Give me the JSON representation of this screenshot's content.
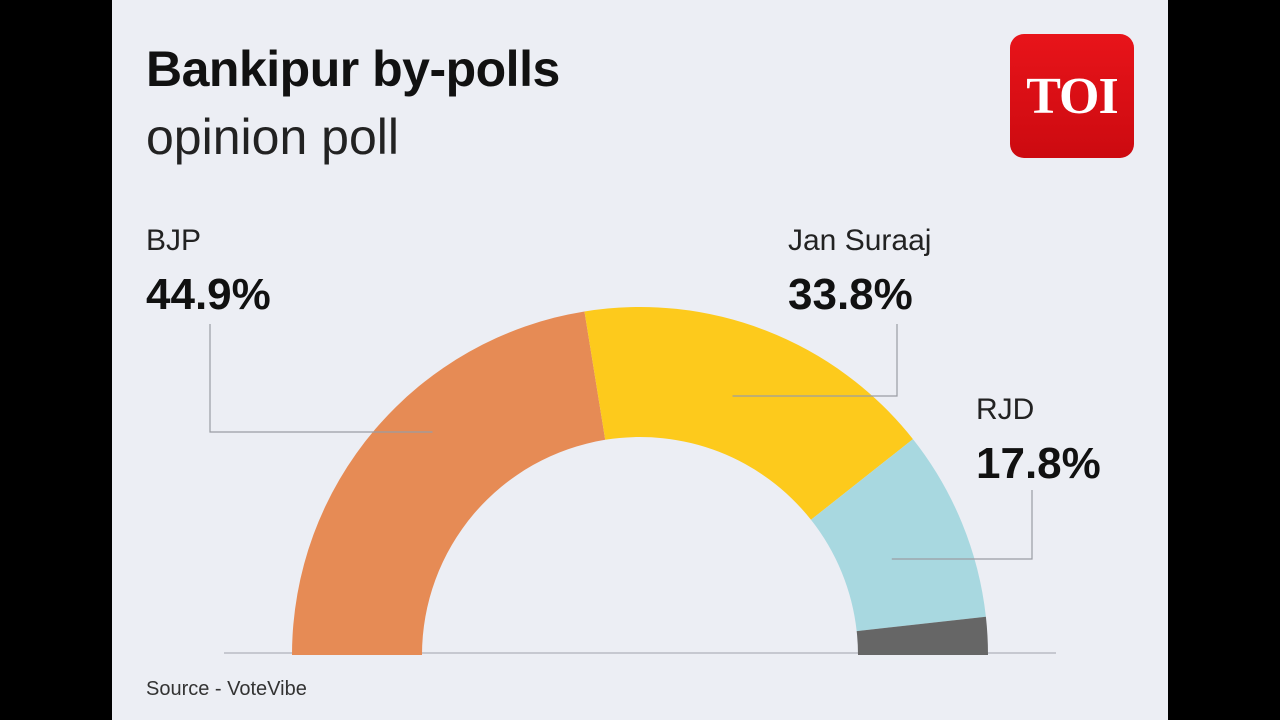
{
  "title": "Bankipur by-polls",
  "subtitle": "opinion poll",
  "logo_text": "TOI",
  "source": "Source - VoteVibe",
  "colors": {
    "background": "#eceef4",
    "logo": "#e01218"
  },
  "chart_data": {
    "type": "pie",
    "variant": "semi-donut",
    "title": "Bankipur by-polls",
    "subtitle": "opinion poll",
    "unit": "%",
    "series": [
      {
        "name": "BJP",
        "value": 44.9,
        "label": "44.9%",
        "color": "#e68b55"
      },
      {
        "name": "Jan Suraaj",
        "value": 33.8,
        "label": "33.8%",
        "color": "#fdca1c"
      },
      {
        "name": "RJD",
        "value": 17.8,
        "label": "17.8%",
        "color": "#a8d8e0"
      },
      {
        "name": "",
        "value": 3.5,
        "label": "",
        "color": "#666666"
      }
    ],
    "legend": "none"
  }
}
